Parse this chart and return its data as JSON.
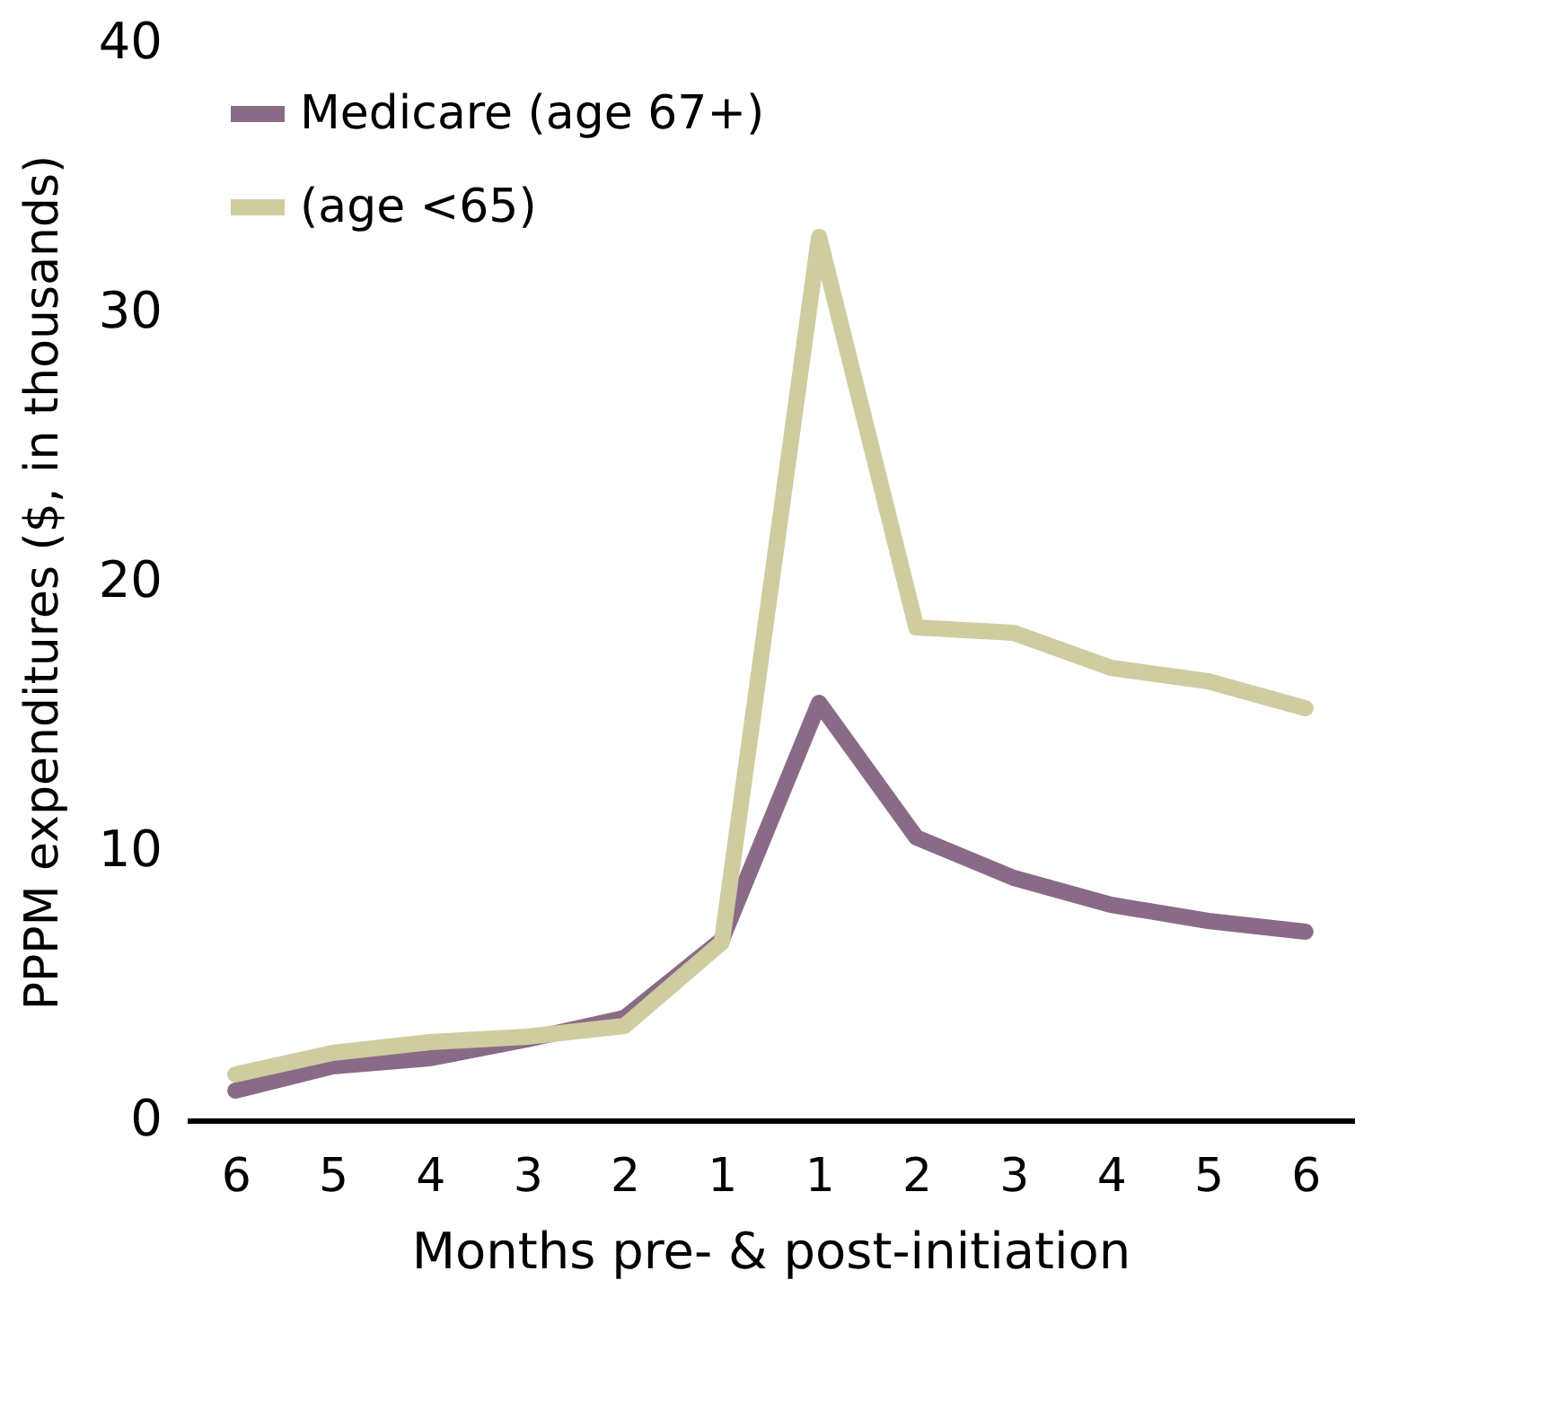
{
  "chart_data": {
    "type": "line",
    "xlabel": "Months pre- & post-initiation",
    "ylabel": "PPPM expenditures ($, in thousands)",
    "categories": [
      "6",
      "5",
      "4",
      "3",
      "2",
      "1",
      "1",
      "2",
      "3",
      "4",
      "5",
      "6"
    ],
    "series": [
      {
        "name": "Medicare (age 67+)",
        "color": "#8a6b87",
        "values": [
          1.1,
          2.0,
          2.3,
          3.0,
          3.8,
          6.7,
          15.5,
          10.5,
          9.0,
          8.0,
          7.4,
          7.0
        ]
      },
      {
        "name": "(age <65)",
        "color": "#cfcca0",
        "values": [
          1.7,
          2.5,
          2.9,
          3.1,
          3.5,
          6.6,
          32.8,
          18.3,
          18.1,
          16.8,
          16.3,
          15.3
        ]
      }
    ],
    "ylim": [
      0,
      40
    ],
    "yticks": [
      0,
      10,
      20,
      30,
      40
    ],
    "grid": false,
    "legend": "top left",
    "marker": "none",
    "line_style": "solid"
  }
}
